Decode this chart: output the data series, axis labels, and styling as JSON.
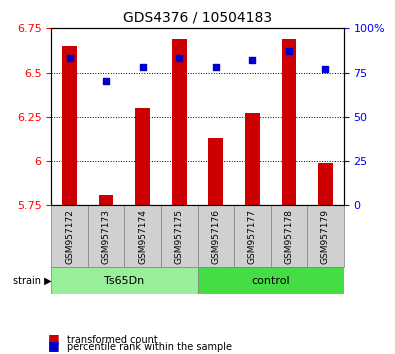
{
  "title": "GDS4376 / 10504183",
  "samples": [
    "GSM957172",
    "GSM957173",
    "GSM957174",
    "GSM957175",
    "GSM957176",
    "GSM957177",
    "GSM957178",
    "GSM957179"
  ],
  "red_values": [
    6.65,
    5.81,
    6.3,
    6.69,
    6.13,
    6.27,
    6.69,
    5.99
  ],
  "blue_values": [
    83,
    70,
    78,
    83,
    78,
    82,
    87,
    77
  ],
  "ylim_left": [
    5.75,
    6.75
  ],
  "ylim_right": [
    0,
    100
  ],
  "yticks_left": [
    5.75,
    6.0,
    6.25,
    6.5,
    6.75
  ],
  "ytick_labels_left": [
    "5.75",
    "6",
    "6.25",
    "6.5",
    "6.75"
  ],
  "yticks_right": [
    0,
    25,
    50,
    75,
    100
  ],
  "ytick_labels_right": [
    "0",
    "25",
    "50",
    "75",
    "100%"
  ],
  "group1_label": "Ts65Dn",
  "group2_label": "control",
  "group1_indices": [
    0,
    1,
    2,
    3
  ],
  "group2_indices": [
    4,
    5,
    6,
    7
  ],
  "strain_label": "strain",
  "legend_red": "transformed count",
  "legend_blue": "percentile rank within the sample",
  "bar_color": "#cc0000",
  "dot_color": "#0000cc",
  "group1_color": "#99ee99",
  "group2_color": "#44dd44",
  "bar_width": 0.4,
  "base_value": 5.75
}
